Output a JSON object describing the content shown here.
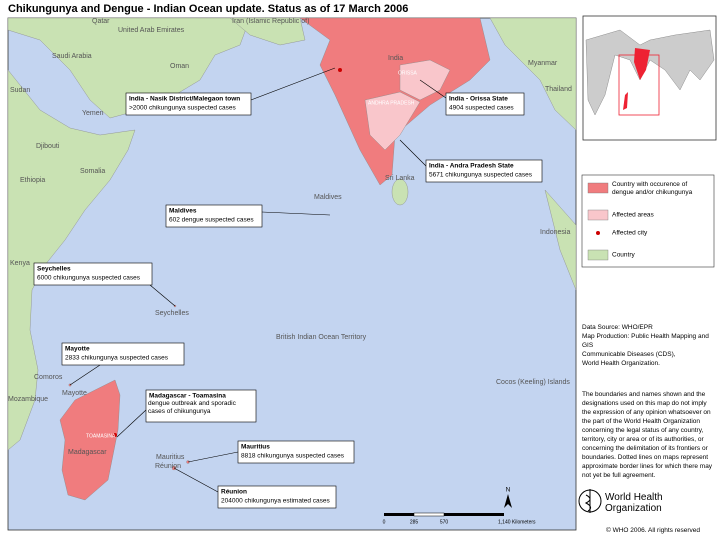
{
  "header": {
    "title": "Chikungunya and Dengue - Indian Ocean update. Status as of 17 March 2006"
  },
  "map": {
    "labels": [
      "Qatar",
      "United Arab Emirates",
      "Iran (Islamic Republic of)",
      "Saudi Arabia",
      "Oman",
      "Yemen",
      "Sudan",
      "Djibouti",
      "Somalia",
      "Ethiopia",
      "Kenya",
      "India",
      "Sri Lanka",
      "Maldives",
      "Myanmar",
      "Thailand",
      "Indonesia",
      "Seychelles",
      "British Indian Ocean Territory",
      "Comoros",
      "Mayotte",
      "Mozambique",
      "Madagascar",
      "Mauritius",
      "Réunion",
      "Cocos (Keeling) Islands",
      "ORISSA",
      "ANDHRA PRADESH",
      "TOAMASINA"
    ],
    "callouts": [
      {
        "title": "India - Nasik District/Malegaon town",
        "detail": ">2000 chikungunya suspected cases"
      },
      {
        "title": "India - Orissa State",
        "detail": "4904 suspected cases"
      },
      {
        "title": "India - Andra Pradesh State",
        "detail": "5671 chikungunya suspected cases"
      },
      {
        "title": "Maldives",
        "detail": "602 dengue suspected cases"
      },
      {
        "title": "Seychelles",
        "detail": "6000 chikungunya suspected cases"
      },
      {
        "title": "Mayotte",
        "detail": "2833 chikungunya suspected cases"
      },
      {
        "title": "Madagascar - Toamasina",
        "detail": "dengue outbreak and sporadic cases of chikungunya"
      },
      {
        "title": "Mauritius",
        "detail": "8818 chikungunya suspected cases"
      },
      {
        "title": "Réunion",
        "detail": "204000 chikungunya estimated cases"
      }
    ],
    "scale": [
      "0",
      "285",
      "570",
      "1,140 Kilometers"
    ],
    "north": "N"
  },
  "legend": {
    "items": [
      "Country with occurence of dengue and/or chikungunya",
      "Affected areas",
      "Affected city",
      "Country"
    ]
  },
  "source": {
    "lines": [
      "Data Source: WHO/EPR",
      "Map Production: Public Health Mapping and GIS",
      "Communicable Diseases (CDS),",
      "World Health Organization."
    ]
  },
  "disclaimer": "The boundaries and names shown and the designations used on this map do not imply the expression of any opinion whatsoever on the part of the World Health Organization concerning the legal status of any country, territory, city or area or of its authorities, or concerning the delimitation of its frontiers or boundaries. Dotted lines on maps represent approximate border lines for which there may not yet be full agreement.",
  "logo": {
    "line1": "World Health",
    "line2": "Organization"
  },
  "copyright": "© WHO 2006. All rights reserved"
}
